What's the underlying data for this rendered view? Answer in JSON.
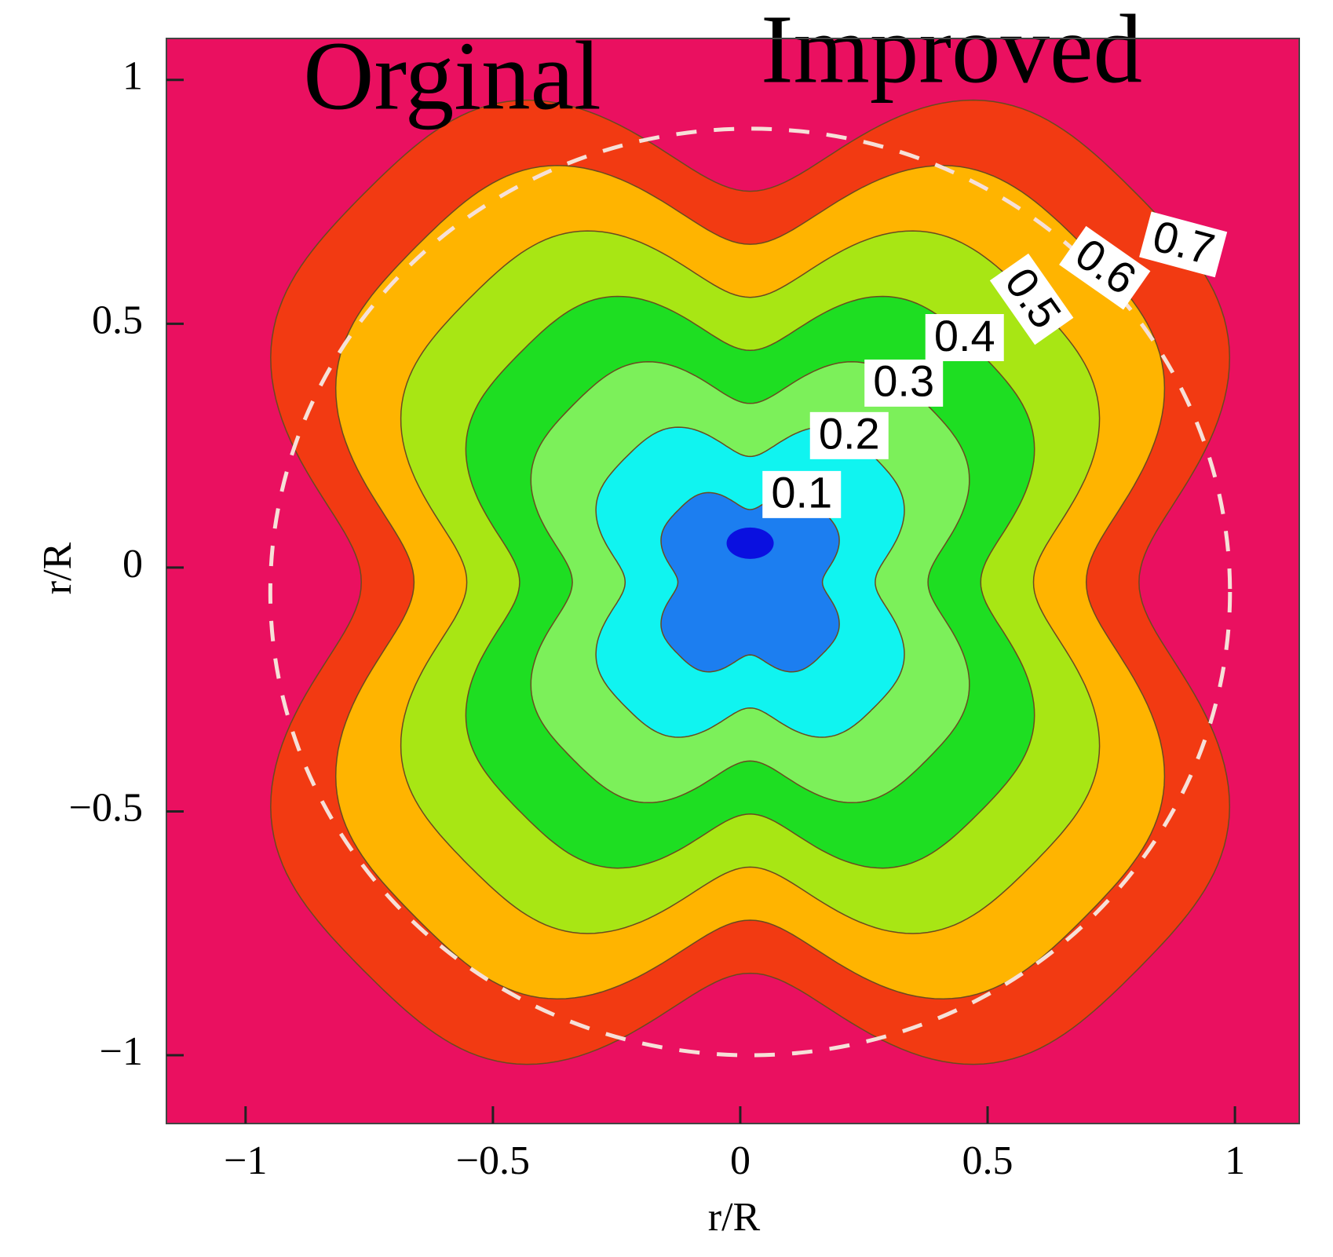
{
  "chart_data": {
    "type": "contour",
    "annotations": [
      "Orginal",
      "Improved"
    ],
    "xlabel": "r/R",
    "ylabel": "r/R",
    "xlim": [
      -1.16,
      1.13
    ],
    "ylim": [
      -1.14,
      1.085
    ],
    "xticks": [
      {
        "value": -1,
        "label": "−1"
      },
      {
        "value": -0.5,
        "label": "−0.5"
      },
      0,
      0.5,
      1
    ],
    "yticks": [
      {
        "value": -1,
        "label": "−1"
      },
      {
        "value": -0.5,
        "label": "−0.5"
      },
      0,
      0.5,
      1
    ],
    "levels": [
      0.1,
      0.2,
      0.3,
      0.4,
      0.5,
      0.6,
      0.7
    ],
    "level_colors": [
      "#1c7ef0",
      "#10f4f0",
      "#7cf05a",
      "#1ede22",
      "#a8e614",
      "#ffb400",
      "#f23a12"
    ],
    "background_color": "#ea1060"
  }
}
